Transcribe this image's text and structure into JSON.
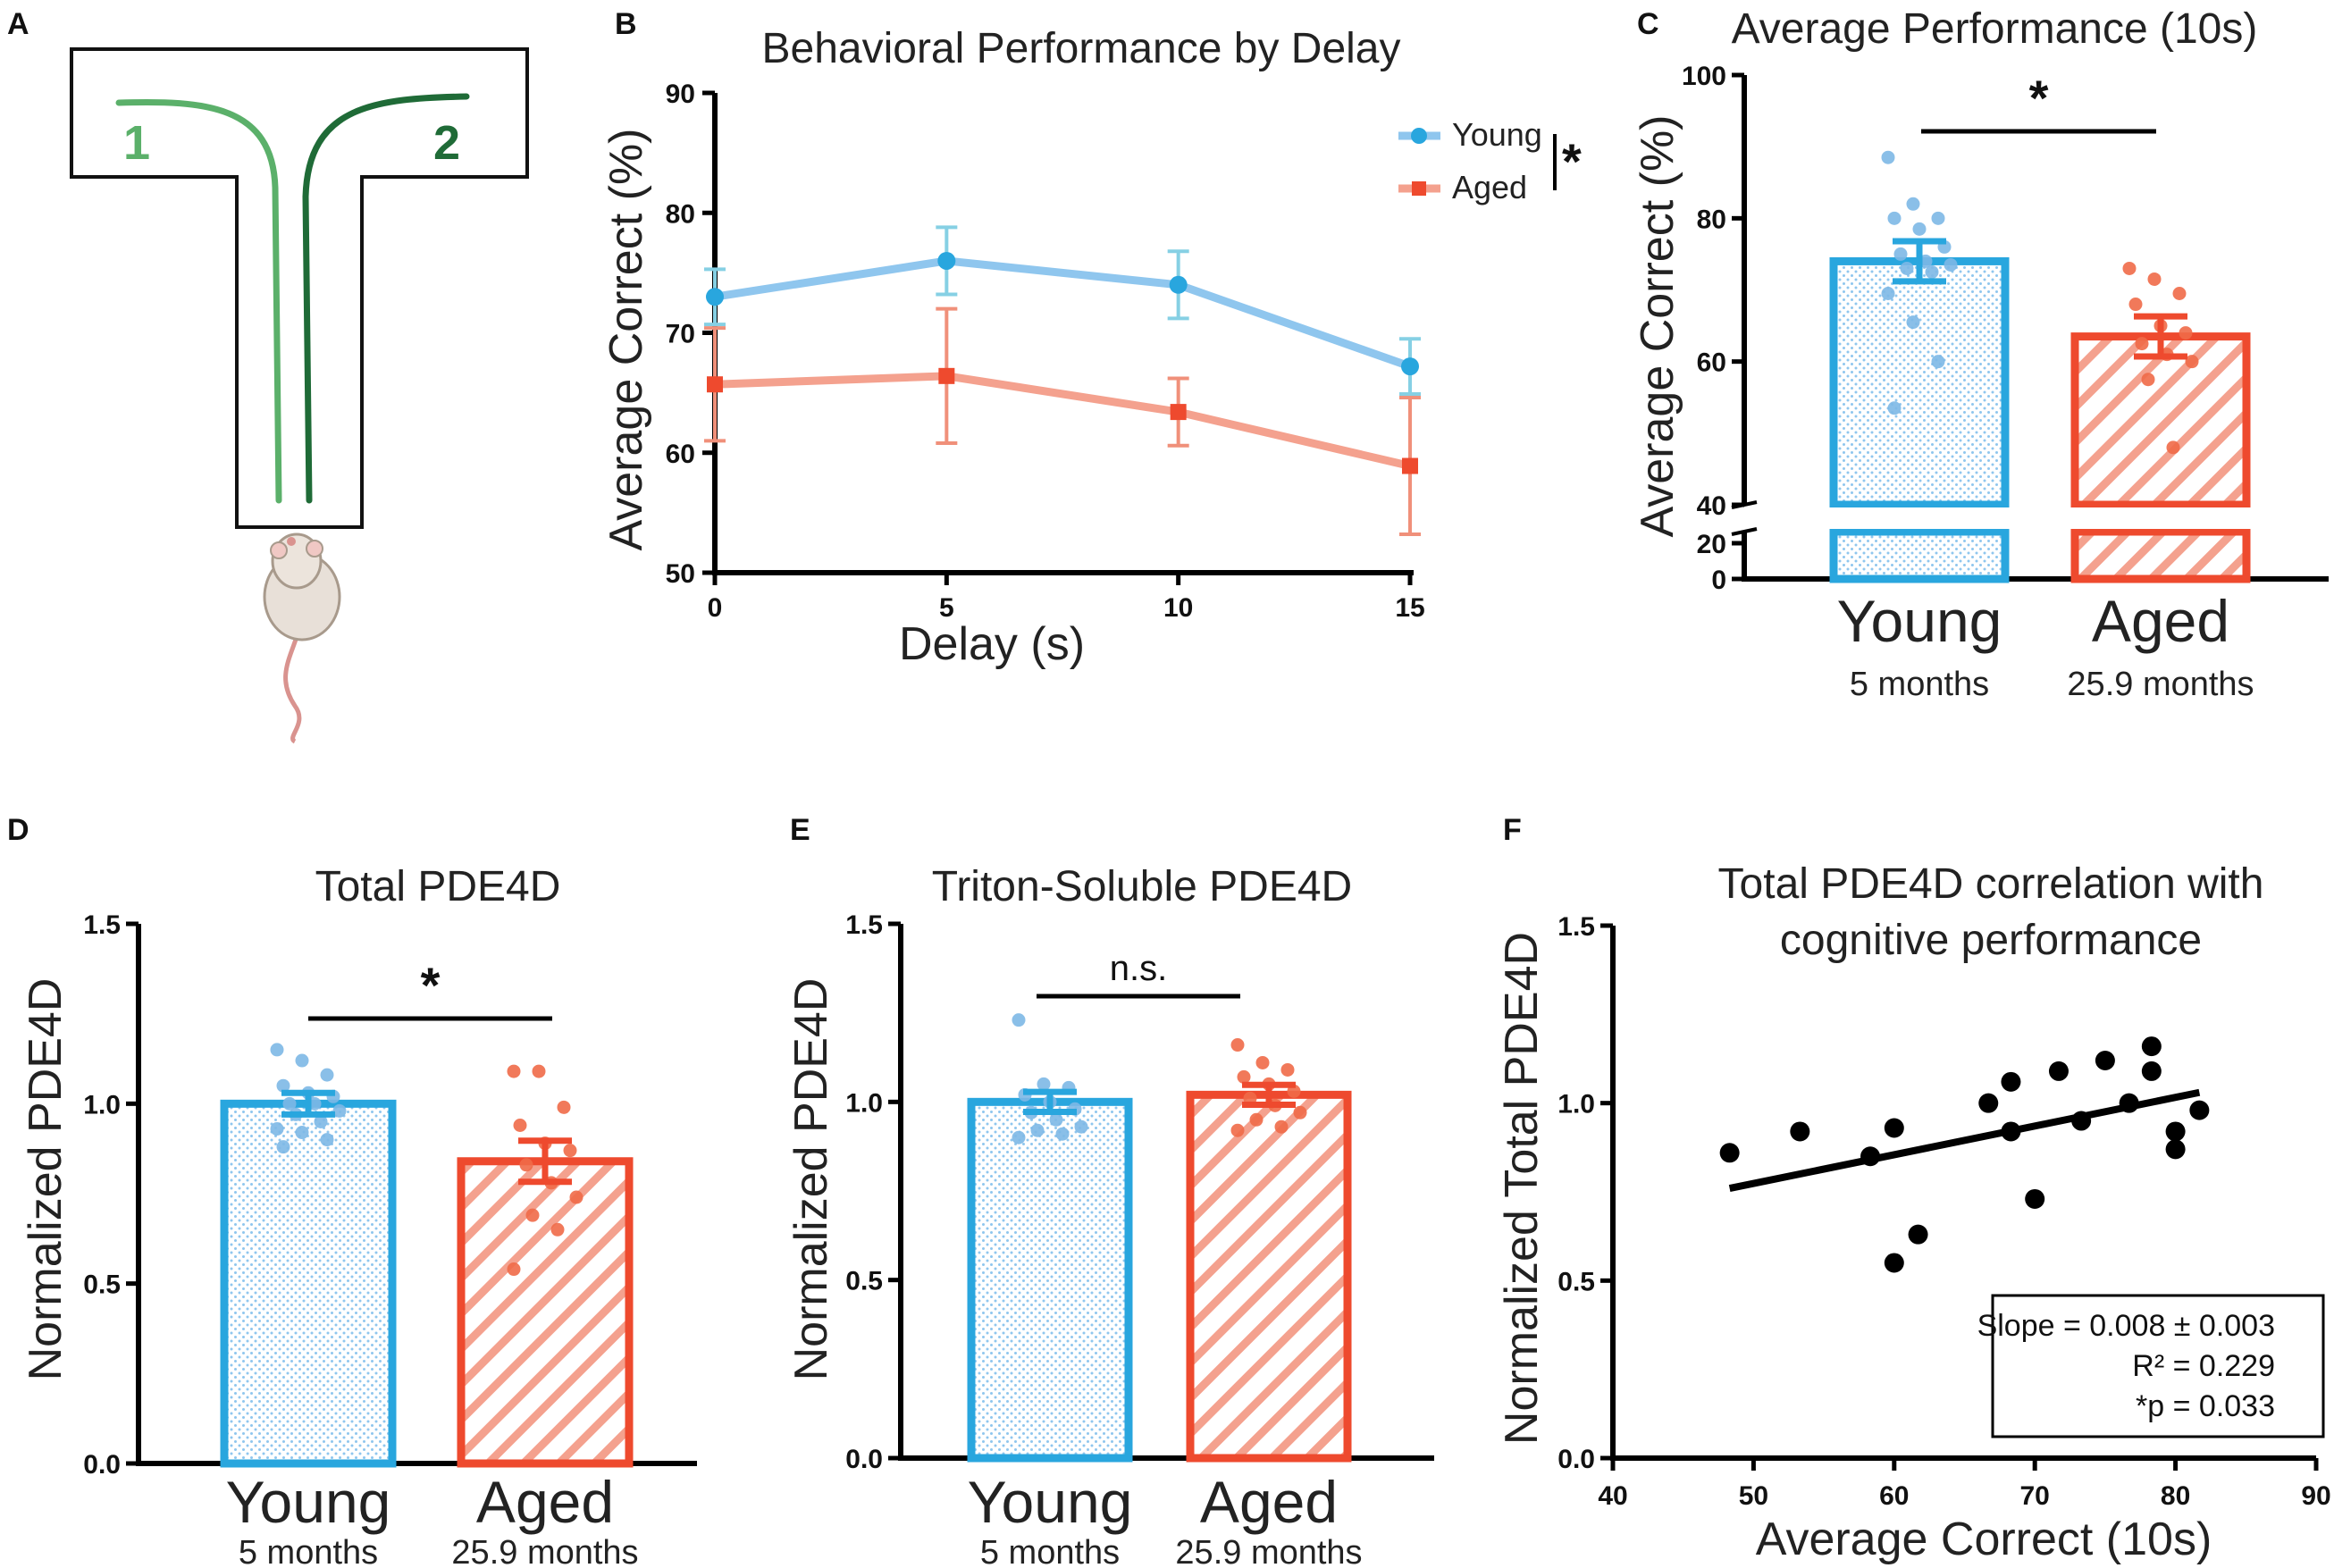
{
  "colors": {
    "young": "#29a6de",
    "young_light": "#8fc6ee",
    "young_dot": "#7db8e6",
    "aged": "#ee4a2e",
    "aged_light": "#f4a18e",
    "aged_dot": "#f06a48",
    "maze_path1": "#5bb06a",
    "maze_path2": "#1f6b37",
    "axis": "#000000"
  },
  "panel_a": {
    "label": "A",
    "arm_labels": [
      "1",
      "2"
    ],
    "rat_icon": "rat-icon"
  },
  "chart_data": [
    {
      "id": "B",
      "type": "line",
      "label": "B",
      "title": "Behavioral Performance by Delay",
      "xlabel": "Delay (s)",
      "ylabel": "Average Correct (%)",
      "x": [
        0,
        5,
        10,
        15
      ],
      "x_ticks": [
        "0",
        "5",
        "10",
        "15"
      ],
      "y_ticks": [
        "50",
        "60",
        "70",
        "80",
        "90"
      ],
      "ylim": [
        50,
        90
      ],
      "series": [
        {
          "name": "Young",
          "values": [
            73,
            76,
            74,
            67.2
          ],
          "err": [
            2.3,
            2.8,
            2.8,
            2.3
          ]
        },
        {
          "name": "Aged",
          "values": [
            65.7,
            66.4,
            63.4,
            58.9
          ],
          "err": [
            4.7,
            5.6,
            2.8,
            5.7
          ]
        }
      ],
      "legend": [
        "Young",
        "Aged"
      ],
      "legend_position": "top-right",
      "significance": "*"
    },
    {
      "id": "C",
      "type": "bar",
      "label": "C",
      "title": "Average Performance (10s)",
      "ylabel": "Average Correct (%)",
      "categories": [
        "Young",
        "Aged"
      ],
      "sublabels": [
        "5 months",
        "25.9 months"
      ],
      "values": [
        74,
        63.5
      ],
      "err": [
        2.8,
        2.8
      ],
      "points": [
        [
          88.5,
          82,
          80,
          80,
          78.5,
          76,
          75,
          74,
          73.5,
          73,
          72.5,
          69.5,
          65.5,
          60,
          53.5
        ],
        [
          73,
          71.5,
          69.5,
          68,
          65,
          64,
          62.5,
          61,
          60,
          57.5,
          48
        ]
      ],
      "y_ticks": [
        "0",
        "20",
        "40",
        "60",
        "80",
        "100"
      ],
      "ylim": [
        40,
        100
      ],
      "axis_break": [
        20,
        40
      ],
      "significance": "*"
    },
    {
      "id": "D",
      "type": "bar",
      "label": "D",
      "title": "Total PDE4D",
      "ylabel": "Normalized PDE4D",
      "categories": [
        "Young",
        "Aged"
      ],
      "sublabels": [
        "5 months",
        "25.9 months"
      ],
      "values": [
        1.0,
        0.84
      ],
      "err": [
        0.03,
        0.057
      ],
      "points": [
        [
          1.15,
          1.12,
          1.08,
          1.05,
          1.03,
          1.02,
          1.0,
          1.0,
          0.98,
          0.97,
          0.95,
          0.93,
          0.92,
          0.9,
          0.88
        ],
        [
          1.09,
          1.09,
          0.99,
          0.94,
          0.89,
          0.87,
          0.83,
          0.78,
          0.74,
          0.69,
          0.65,
          0.54
        ]
      ],
      "y_ticks": [
        "0.0",
        "0.5",
        "1.0",
        "1.5"
      ],
      "ylim": [
        0,
        1.5
      ],
      "significance": "*"
    },
    {
      "id": "E",
      "type": "bar",
      "label": "E",
      "title": "Triton-Soluble PDE4D",
      "ylabel": "Normalized PDE4D",
      "categories": [
        "Young",
        "Aged"
      ],
      "sublabels": [
        "5 months",
        "25.9 months"
      ],
      "values": [
        1.0,
        1.02
      ],
      "err": [
        0.028,
        0.028
      ],
      "points": [
        [
          1.23,
          1.05,
          1.04,
          1.02,
          1.0,
          0.98,
          0.97,
          0.95,
          0.93,
          0.92,
          0.91,
          0.9
        ],
        [
          1.16,
          1.11,
          1.09,
          1.07,
          1.05,
          1.03,
          1.01,
          0.99,
          0.97,
          0.95,
          0.93,
          0.92
        ]
      ],
      "y_ticks": [
        "0.0",
        "0.5",
        "1.0",
        "1.5"
      ],
      "ylim": [
        0,
        1.5
      ],
      "significance": "n.s."
    },
    {
      "id": "F",
      "type": "scatter",
      "label": "F",
      "title": "Total PDE4D correlation with",
      "title_line2": "cognitive performance",
      "xlabel": "Average Correct (10s)",
      "ylabel": "Normalized Total PDE4D",
      "x_ticks": [
        "40",
        "50",
        "60",
        "70",
        "80",
        "90"
      ],
      "y_ticks": [
        "0.0",
        "0.5",
        "1.0",
        "1.5"
      ],
      "xlim": [
        40,
        90
      ],
      "ylim": [
        0,
        1.5
      ],
      "points": [
        [
          48.3,
          0.86
        ],
        [
          53.3,
          0.92
        ],
        [
          58.3,
          0.85
        ],
        [
          60,
          0.93
        ],
        [
          60,
          0.55
        ],
        [
          61.7,
          0.63
        ],
        [
          66.7,
          1.0
        ],
        [
          68.3,
          1.06
        ],
        [
          68.3,
          0.92
        ],
        [
          70,
          0.73
        ],
        [
          71.7,
          1.09
        ],
        [
          73.3,
          0.95
        ],
        [
          75,
          1.12
        ],
        [
          76.7,
          1.0
        ],
        [
          78.3,
          1.16
        ],
        [
          78.3,
          1.09
        ],
        [
          80,
          0.92
        ],
        [
          80,
          0.87
        ],
        [
          81.7,
          0.98
        ]
      ],
      "fit": {
        "x": [
          48.3,
          81.7
        ],
        "y": [
          0.76,
          1.03
        ]
      },
      "stats": [
        "Slope = 0.008 ± 0.003",
        "R² = 0.229",
        "*p = 0.033"
      ]
    }
  ]
}
